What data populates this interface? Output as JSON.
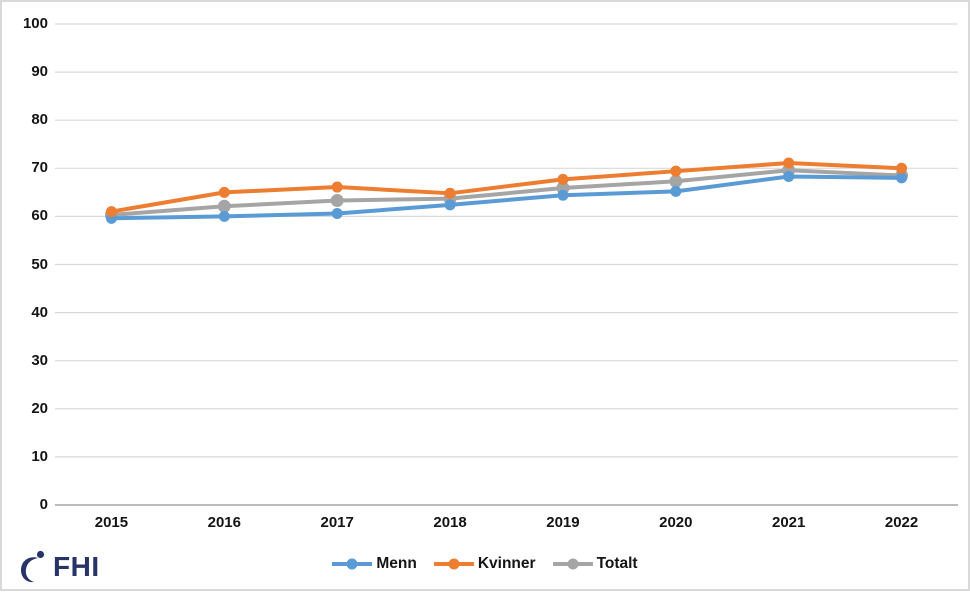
{
  "chart_data": {
    "type": "line",
    "title": "",
    "categories": [
      "2015",
      "2016",
      "2017",
      "2018",
      "2019",
      "2020",
      "2021",
      "2022"
    ],
    "series": [
      {
        "name": "Menn",
        "color": "#5B9BD5",
        "values": [
          59.6,
          60.0,
          60.6,
          62.4,
          64.4,
          65.2,
          68.3,
          68.0
        ]
      },
      {
        "name": "Kvinner",
        "color": "#ED7D31",
        "values": [
          61.0,
          65.0,
          66.1,
          64.8,
          67.7,
          69.4,
          71.1,
          70.0
        ]
      },
      {
        "name": "Totalt",
        "color": "#A5A5A5",
        "values": [
          60.3,
          62.1,
          63.3,
          63.7,
          65.9,
          67.3,
          69.6,
          68.5
        ]
      }
    ],
    "xlabel": "",
    "ylabel": "",
    "ylim": [
      0,
      100
    ],
    "ytick_step": 10,
    "grid": "horizontal-only",
    "gridline_color": "#D9D9D9",
    "axis_line_color": "#A6A6A6",
    "tick_label_color": "#141414",
    "legend_position": "bottom",
    "marker": "circle"
  },
  "logo": {
    "text": "FHI",
    "color": "#283467"
  },
  "frame": {
    "border_color": "#D9D9D9",
    "background": "#FFFFFF"
  }
}
